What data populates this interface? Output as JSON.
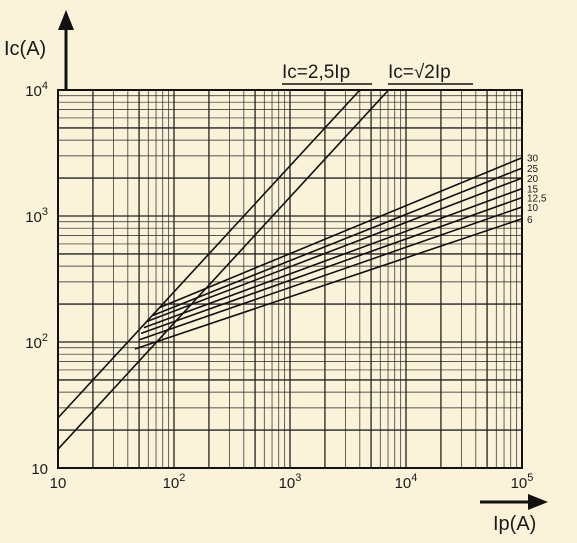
{
  "chart_data": {
    "type": "line",
    "xlabel": "Ip(A)",
    "ylabel": "Ic(A)",
    "x_scale": "log",
    "y_scale": "log",
    "xlim": [
      10,
      100000
    ],
    "ylim": [
      10,
      10000
    ],
    "grid": true,
    "x_ticks": [
      {
        "value": 10,
        "label": "10"
      },
      {
        "value": 100,
        "label": "10²"
      },
      {
        "value": 1000,
        "label": "10³"
      },
      {
        "value": 10000,
        "label": "10⁴"
      },
      {
        "value": 100000,
        "label": "10⁵"
      }
    ],
    "y_ticks": [
      {
        "value": 10,
        "label": "10"
      },
      {
        "value": 100,
        "label": "10²"
      },
      {
        "value": 1000,
        "label": "10³"
      },
      {
        "value": 10000,
        "label": "10⁴"
      }
    ],
    "series": [
      {
        "name": "Ic=2,5Ip",
        "label": "Ic=2,5Ip",
        "points": [
          [
            10,
            25
          ],
          [
            4000,
            10000
          ]
        ]
      },
      {
        "name": "Ic=√2Ip",
        "label": "Ic=√2Ip",
        "points": [
          [
            10,
            14.1
          ],
          [
            7071,
            10000
          ]
        ]
      },
      {
        "name": "30",
        "label": "30",
        "points": [
          [
            75,
            187.5
          ],
          [
            100000,
            2900
          ]
        ]
      },
      {
        "name": "25",
        "label": "25",
        "points": [
          [
            65,
            162
          ],
          [
            100000,
            2400
          ]
        ]
      },
      {
        "name": "20",
        "label": "20",
        "points": [
          [
            58,
            145
          ],
          [
            100000,
            2000
          ]
        ]
      },
      {
        "name": "15",
        "label": "15",
        "points": [
          [
            55,
            130
          ],
          [
            100000,
            1650
          ]
        ]
      },
      {
        "name": "12,5",
        "label": "12,5",
        "points": [
          [
            52,
            117
          ],
          [
            100000,
            1400
          ]
        ]
      },
      {
        "name": "10",
        "label": "10",
        "points": [
          [
            50,
            104
          ],
          [
            100000,
            1180
          ]
        ]
      },
      {
        "name": "6",
        "label": "6",
        "points": [
          [
            46,
            88
          ],
          [
            100000,
            950
          ]
        ]
      }
    ]
  }
}
